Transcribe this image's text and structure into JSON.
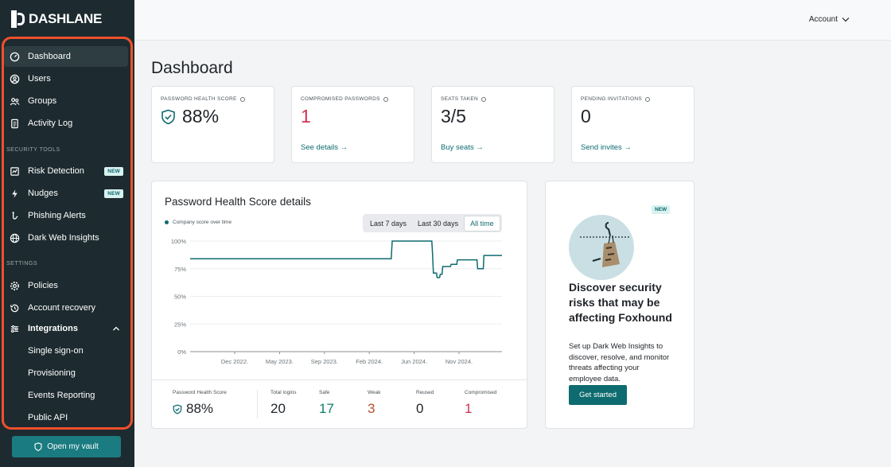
{
  "brand": {
    "name": "DASHLANE"
  },
  "colors": {
    "sidebar": "#1d2b30",
    "accent": "#0e6b6f",
    "danger": "#d13353",
    "warning": "#b5502b",
    "highlight_frame": "#f0502c"
  },
  "sidebar": {
    "items": [
      {
        "label": "Dashboard",
        "icon": "gauge-icon"
      },
      {
        "label": "Users",
        "icon": "user-circle-icon"
      },
      {
        "label": "Groups",
        "icon": "users-icon"
      },
      {
        "label": "Activity Log",
        "icon": "document-icon"
      }
    ],
    "security_label": "SECURITY TOOLS",
    "security_items": [
      {
        "label": "Risk Detection",
        "badge": "NEW",
        "icon": "radar-icon"
      },
      {
        "label": "Nudges",
        "badge": "NEW",
        "icon": "lightning-icon"
      },
      {
        "label": "Phishing Alerts",
        "icon": "phishing-icon"
      },
      {
        "label": "Dark Web Insights",
        "icon": "globe-icon"
      }
    ],
    "settings_label": "SETTINGS",
    "settings_items": [
      {
        "label": "Policies",
        "icon": "gear-icon"
      },
      {
        "label": "Account recovery",
        "icon": "recovery-icon"
      },
      {
        "label": "Integrations",
        "icon": "sliders-icon"
      }
    ],
    "integration_sub": [
      "Single sign-on",
      "Provisioning",
      "Events Reporting",
      "Public API"
    ],
    "vault_button": "Open my vault"
  },
  "topbar": {
    "account_label": "Account"
  },
  "page_title": "Dashboard",
  "stats": [
    {
      "label": "PASSWORD HEALTH SCORE",
      "value": "88%",
      "link": ""
    },
    {
      "label": "COMPROMISED PASSWORDS",
      "value": "1",
      "link": "See details →"
    },
    {
      "label": "SEATS TAKEN",
      "value": "3/5",
      "link": "Buy seats →"
    },
    {
      "label": "PENDING INVITATIONS",
      "value": "0",
      "link": "Send invites →"
    }
  ],
  "chart_card": {
    "title": "Password Health Score details",
    "legend": "Company score over time",
    "ranges": [
      "Last 7 days",
      "Last 30 days",
      "All time"
    ],
    "selected_range": "All time"
  },
  "chart_data": {
    "type": "line",
    "title": "",
    "xlabel": "",
    "ylabel": "",
    "ylim": [
      0,
      100
    ],
    "yticks": [
      "100%",
      "75%",
      "50%",
      "25%",
      "0%"
    ],
    "xticks": [
      "Dec 2022.",
      "May 2023.",
      "Sep 2023.",
      "Feb 2024.",
      "Jun 2024.",
      "Nov 2024."
    ],
    "series": [
      {
        "name": "Company score over time",
        "points": [
          [
            0,
            84
          ],
          [
            0.645,
            84
          ],
          [
            0.648,
            100
          ],
          [
            0.775,
            100
          ],
          [
            0.777,
            90
          ],
          [
            0.78,
            71
          ],
          [
            0.79,
            71
          ],
          [
            0.792,
            67
          ],
          [
            0.8,
            67
          ],
          [
            0.802,
            70
          ],
          [
            0.808,
            70
          ],
          [
            0.81,
            77
          ],
          [
            0.835,
            77
          ],
          [
            0.837,
            79
          ],
          [
            0.855,
            79
          ],
          [
            0.857,
            83
          ],
          [
            0.92,
            83
          ],
          [
            0.922,
            75
          ],
          [
            0.94,
            75
          ],
          [
            0.942,
            87
          ],
          [
            1,
            87
          ]
        ]
      }
    ]
  },
  "summary": {
    "health_label": "Password Health Score",
    "health_value": "88%",
    "columns": [
      {
        "label": "Total logins",
        "value": "20"
      },
      {
        "label": "Safe",
        "value": "17"
      },
      {
        "label": "Weak",
        "value": "3"
      },
      {
        "label": "Reused",
        "value": "0"
      },
      {
        "label": "Compromised",
        "value": "1"
      }
    ]
  },
  "promo": {
    "badge": "NEW",
    "title": "Discover security risks that may be affecting Foxhound",
    "text": "Set up Dark Web Insights to discover, resolve, and monitor threats affecting your employee data.",
    "button": "Get started"
  }
}
